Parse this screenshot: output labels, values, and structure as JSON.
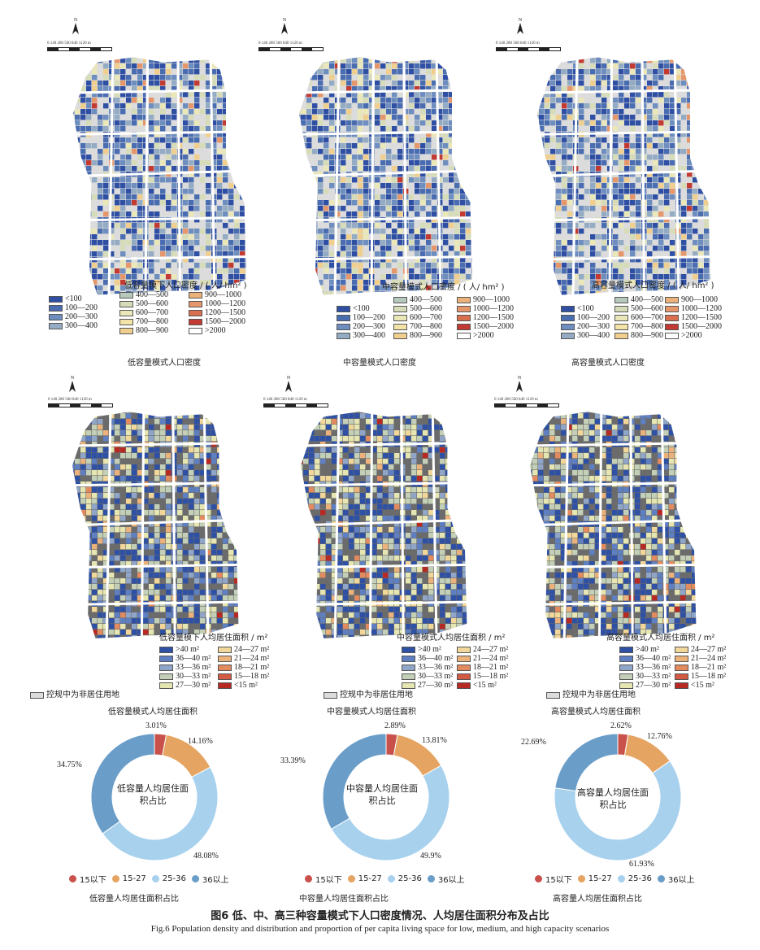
{
  "scale_text": "0  140 280     560      840       1120 m",
  "north": "N",
  "colors": {
    "dens": [
      "#2e4fa3",
      "#4a6db1",
      "#6e8ebf",
      "#94abc4",
      "#b6c7bc",
      "#d6dcb8",
      "#eae7b8",
      "#f3e3a6",
      "#f0cf8e",
      "#eab27a",
      "#e5966a",
      "#d8704f",
      "#c23a32"
    ],
    "pc": [
      "#2f51a5",
      "#5e7fc1",
      "#90a6c9",
      "#c3cfb6",
      "#e6e6b2",
      "#f2d79b",
      "#ecb27c",
      "#e38a5f",
      "#d35a43",
      "#b72a24"
    ],
    "base": "#dcdcdc",
    "dark": "#6b6b6b",
    "road": "#ffffff",
    "pie": [
      "#c9514b",
      "#e5a461",
      "#a8d1ee",
      "#6a9ec9"
    ]
  },
  "row1": [
    {
      "title": "低容量模下人口密度 / ( 人/ hm² )",
      "caption": "低容量模式人口密度"
    },
    {
      "title": "中容量模式人口密度 / ( 人/ hm² )",
      "caption": "中容量模式人口密度"
    },
    {
      "title": "高容量模式人口密度 / ( 人/ hm² )",
      "caption": "高容量模式人口密度"
    }
  ],
  "density_legend": {
    "col1": [
      "<100",
      "100—200",
      "200—300",
      "300—400"
    ],
    "col2": [
      "400—500",
      "500—600",
      "600—700",
      "700—800",
      "800—900"
    ],
    "col3": [
      "900—1000",
      "1000—1200",
      "1200—1500",
      "1500—2000",
      ">2000"
    ]
  },
  "row2": [
    {
      "title": "低容量模下人均居住面积 / m²",
      "caption": "低容量模式人均居住面积"
    },
    {
      "title": "中容量模式人均居住面积 / m²",
      "caption": "中容量模式人均居住面积"
    },
    {
      "title": "高容量模式人均居住面积 / m²",
      "caption": "高容量模式人均居住面积"
    }
  ],
  "pc_legend": {
    "col1": [
      ">40 m²",
      "36—40 m²",
      "33—36 m²",
      "30—33 m²",
      "27—30 m²"
    ],
    "col2": [
      "24—27 m²",
      "21—24 m²",
      "18—21 m²",
      "15—18 m²",
      "<15 m²"
    ],
    "nonres": "控规中为非居住用地"
  },
  "pies": [
    {
      "center": "低容量人均居住面积占比",
      "caption": "低容量人均居住面积占比",
      "labels": [
        "3.01%",
        "14.16%",
        "48.08%",
        "34.75%"
      ]
    },
    {
      "center": "中容量人均居住面积占比",
      "caption": "中容量人均居住面积占比",
      "labels": [
        "2.89%",
        "13.81%",
        "49.9%",
        "33.39%"
      ]
    },
    {
      "center": "高容量人均居住面积占比",
      "caption": "高容量人均居住面积占比",
      "labels": [
        "2.62%",
        "12.76%",
        "61.93%",
        "22.69%"
      ]
    }
  ],
  "pie_legend": [
    "15以下",
    "15-27",
    "25-36",
    "36以上"
  ],
  "chart_data": [
    {
      "type": "pie",
      "categories": [
        "15以下",
        "15-27",
        "25-36",
        "36以上"
      ],
      "values": [
        3.01,
        14.16,
        48.08,
        34.75
      ]
    },
    {
      "type": "pie",
      "categories": [
        "15以下",
        "15-27",
        "25-36",
        "36以上"
      ],
      "values": [
        2.89,
        13.81,
        49.9,
        33.39
      ]
    },
    {
      "type": "pie",
      "categories": [
        "15以下",
        "15-27",
        "25-36",
        "36以上"
      ],
      "values": [
        2.62,
        12.76,
        61.93,
        22.69
      ]
    }
  ],
  "figure_title": "图6   低、中、高三种容量模式下人口密度情况、人均居住面积分布及占比",
  "figure_title_en": "Fig.6   Population density and distribution and proportion of per capita living space for low, medium, and high capacity scenarios"
}
